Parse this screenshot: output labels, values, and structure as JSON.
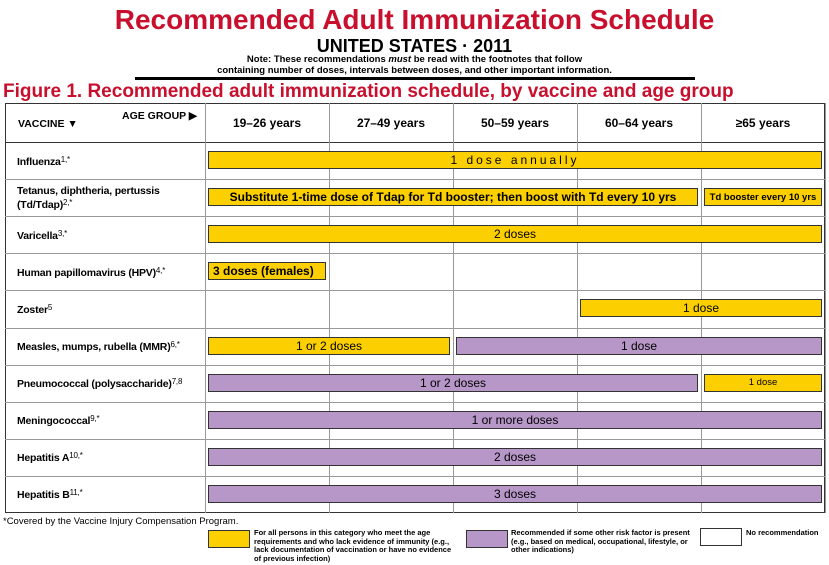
{
  "header": {
    "title": "Recommended Adult Immunization Schedule",
    "subtitle": "UNITED STATES · 2011",
    "note": [
      "Note: These recommendations ",
      "must",
      " be read with the footnotes that follow"
    ],
    "note_line2": "containing number of doses, intervals between doses, and other important information."
  },
  "figure_title": "Figure 1. Recommended adult immunization schedule, by vaccine and age group",
  "table": {
    "vaccine_header": "VACCINE ▼",
    "age_header": "AGE GROUP ▶",
    "age_groups": [
      "19–26 years",
      "27–49 years",
      "50–59 years",
      "60–64 years",
      "≥65 years"
    ],
    "rows": [
      {
        "name": "Influenza",
        "sup": "1,*",
        "bars": [
          {
            "span": [
              0,
              4
            ],
            "label": "1 dose annually",
            "category": "all"
          }
        ]
      },
      {
        "name": "Tetanus, diphtheria, pertussis (Td/Tdap)",
        "sup": "2,*",
        "bars": [
          {
            "span": [
              0,
              3
            ],
            "label": "Substitute 1-time dose of Tdap for Td booster; then boost with Td every 10 yrs",
            "category": "all"
          },
          {
            "span": [
              4,
              4
            ],
            "label": "Td booster every 10 yrs",
            "category": "all"
          }
        ]
      },
      {
        "name": "Varicella",
        "sup": "3,*",
        "bars": [
          {
            "span": [
              0,
              4
            ],
            "label": "2 doses",
            "category": "all"
          }
        ]
      },
      {
        "name": "Human papillomavirus (HPV)",
        "sup": "4,*",
        "bars": [
          {
            "span": [
              0,
              0
            ],
            "label": "3 doses (females)",
            "category": "all"
          }
        ]
      },
      {
        "name": "Zoster",
        "sup": "5",
        "bars": [
          {
            "span": [
              3,
              4
            ],
            "label": "1 dose",
            "category": "all"
          }
        ]
      },
      {
        "name": "Measles, mumps, rubella (MMR)",
        "sup": "6,*",
        "bars": [
          {
            "span": [
              0,
              1
            ],
            "label": "1 or 2 doses",
            "category": "all"
          },
          {
            "span": [
              2,
              4
            ],
            "label": "1 dose",
            "category": "risk"
          }
        ]
      },
      {
        "name": "Pneumococcal (polysaccharide)",
        "sup": "7,8",
        "bars": [
          {
            "span": [
              0,
              3
            ],
            "label": "1 or 2 doses",
            "category": "risk"
          },
          {
            "span": [
              4,
              4
            ],
            "label": "1 dose",
            "category": "all"
          }
        ]
      },
      {
        "name": "Meningococcal",
        "sup": "9,*",
        "bars": [
          {
            "span": [
              0,
              4
            ],
            "label": "1 or more doses",
            "category": "risk"
          }
        ]
      },
      {
        "name": "Hepatitis A",
        "sup": "10,*",
        "bars": [
          {
            "span": [
              0,
              4
            ],
            "label": "2 doses",
            "category": "risk"
          }
        ]
      },
      {
        "name": "Hepatitis B",
        "sup": "11,*",
        "bars": [
          {
            "span": [
              0,
              4
            ],
            "label": "3 doses",
            "category": "risk"
          }
        ]
      }
    ]
  },
  "footnote": "*Covered by the Vaccine Injury Compensation Program.",
  "legend": [
    {
      "category": "all",
      "color": "#fcd000",
      "text": "For all persons in this category who meet the age requirements and who lack evidence of immunity (e.g., lack documentation of vaccination or have no evidence of previous infection)"
    },
    {
      "category": "risk",
      "color": "#b797c8",
      "text": "Recommended if some other risk factor is present (e.g., based on medical, occupational, lifestyle, or other indications)"
    },
    {
      "category": "none",
      "color": "#ffffff",
      "text": "No recommendation"
    }
  ]
}
